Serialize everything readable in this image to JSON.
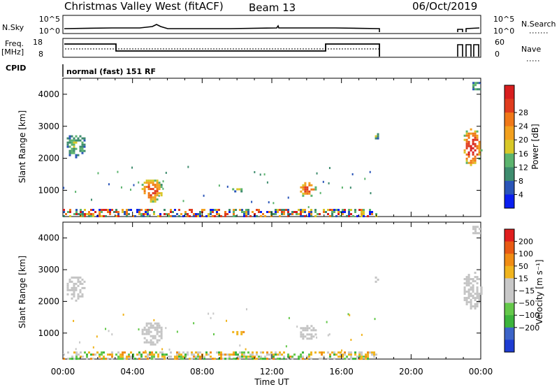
{
  "header": {
    "title": "Christmas Valley West (fitACF)",
    "beam": "Beam 13",
    "date": "06/Oct/2019"
  },
  "top_panels": {
    "nsky_label": "N.Sky",
    "nsky_ticks": [
      "10^5",
      "10^0"
    ],
    "nsky_ticks_right": [
      "10^5",
      "10^0"
    ],
    "nsearch_label": "N.Search",
    "freq_label_1": "Freq.",
    "freq_label_2": "[MHz]",
    "freq_ticks": [
      "18",
      "8"
    ],
    "nave_ticks": [
      "60",
      "0"
    ],
    "nave_label": "Nave",
    "cpid_label": "CPID",
    "cpid_text": "normal (fast) 151 RF"
  },
  "chart_data": [
    {
      "type": "heatmap",
      "title": "",
      "xlabel": "Time UT",
      "ylabel": "Slant Range [km]",
      "x_ticks": [
        "00:00",
        "04:00",
        "08:00",
        "12:00",
        "16:00",
        "20:00",
        "00:00"
      ],
      "x_range_hours": [
        0,
        24
      ],
      "y_ticks": [
        1000,
        2000,
        3000,
        4000
      ],
      "ylim": [
        180,
        4500
      ],
      "colorbar": {
        "label": "Power [dB]",
        "ticks": [
          "4",
          "8",
          "12",
          "16",
          "20",
          "24",
          "28"
        ],
        "colors": [
          "#0a1ef0",
          "#2a55b8",
          "#3e8c6e",
          "#5cb46e",
          "#d8c828",
          "#f2a01e",
          "#f07818",
          "#e03c1e",
          "#d81e1e"
        ]
      },
      "echo_regions": [
        {
          "t0": 0.0,
          "t1": 18.0,
          "r0": 190,
          "r1": 420,
          "level": "mixed"
        },
        {
          "t0": 0.1,
          "t1": 1.3,
          "r0": 2050,
          "r1": 2850,
          "level": 3
        },
        {
          "t0": 4.4,
          "t1": 5.7,
          "r0": 650,
          "r1": 1400,
          "level": 6
        },
        {
          "t0": 9.6,
          "t1": 10.4,
          "r0": 980,
          "r1": 1130,
          "level": 3
        },
        {
          "t0": 13.5,
          "t1": 14.5,
          "r0": 820,
          "r1": 1320,
          "level": 6
        },
        {
          "t0": 17.8,
          "t1": 18.1,
          "r0": 2600,
          "r1": 2850,
          "level": 3
        },
        {
          "t0": 22.9,
          "t1": 24.0,
          "r0": 1750,
          "r1": 3000,
          "level": 7
        },
        {
          "t0": 23.4,
          "t1": 24.0,
          "r0": 4150,
          "r1": 4450,
          "level": 3
        }
      ]
    },
    {
      "type": "heatmap",
      "title": "",
      "xlabel": "Time UT",
      "ylabel": "Slant Range [km]",
      "x_ticks": [
        "00:00",
        "04:00",
        "08:00",
        "12:00",
        "16:00",
        "20:00",
        "00:00"
      ],
      "x_range_hours": [
        0,
        24
      ],
      "y_ticks": [
        1000,
        2000,
        3000,
        4000
      ],
      "ylim": [
        180,
        4500
      ],
      "colorbar": {
        "label": "Velocity [m s⁻¹]",
        "ticks": [
          "200",
          "100",
          "50",
          "15",
          "−15",
          "−50",
          "−100",
          "−200"
        ],
        "colors": [
          "#1e3cd2",
          "#3c64c8",
          "#3cb43c",
          "#64c84a",
          "#c8c8c8",
          "#c8c8c8",
          "#f0b41e",
          "#f08c14",
          "#e85a14",
          "#e01e1e"
        ]
      },
      "echo_regions": [
        {
          "t0": 0.0,
          "t1": 18.0,
          "r0": 190,
          "r1": 420,
          "level": "mixed"
        },
        {
          "t0": 0.1,
          "t1": 1.3,
          "r0": 2050,
          "r1": 2850,
          "level": "ground"
        },
        {
          "t0": 4.4,
          "t1": 5.7,
          "r0": 650,
          "r1": 1400,
          "level": "ground"
        },
        {
          "t0": 9.6,
          "t1": 10.4,
          "r0": 980,
          "r1": 1130,
          "level": 6
        },
        {
          "t0": 13.5,
          "t1": 14.5,
          "r0": 820,
          "r1": 1320,
          "level": "ground"
        },
        {
          "t0": 17.8,
          "t1": 18.1,
          "r0": 2600,
          "r1": 2850,
          "level": "ground"
        },
        {
          "t0": 22.9,
          "t1": 24.0,
          "r0": 1750,
          "r1": 3000,
          "level": "ground"
        },
        {
          "t0": 23.4,
          "t1": 24.0,
          "r0": 4150,
          "r1": 4450,
          "level": "ground"
        }
      ]
    }
  ]
}
